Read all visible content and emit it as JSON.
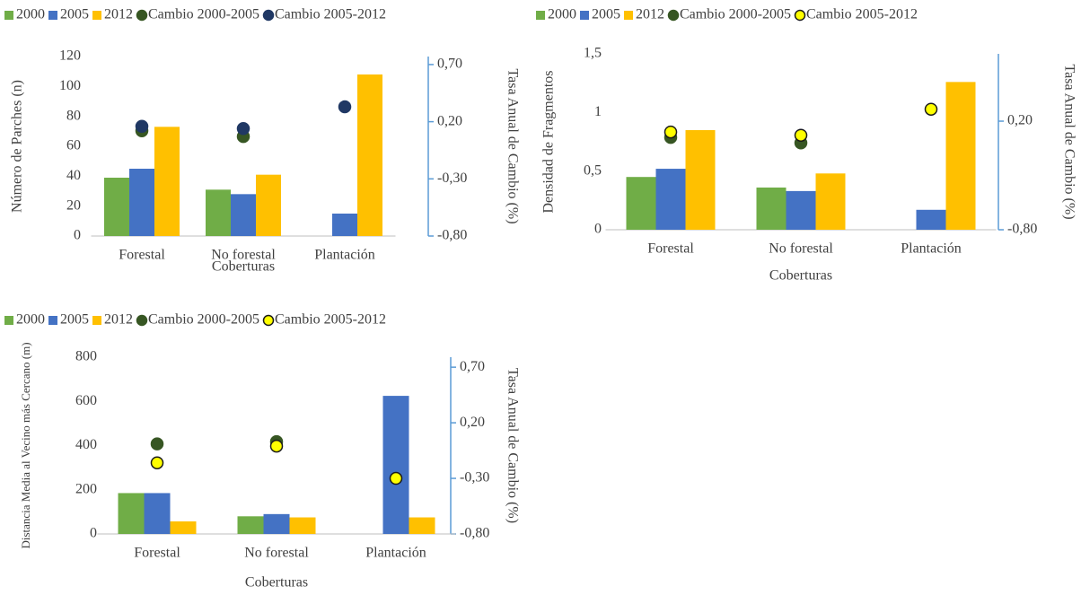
{
  "chart_data": [
    {
      "type": "bar",
      "categories": [
        "Forestal",
        "No forestal",
        "Plantación"
      ],
      "series": [
        {
          "name": "2000",
          "type": "bar",
          "color": "#70ad47",
          "values": [
            39,
            31,
            null
          ]
        },
        {
          "name": "2005",
          "type": "bar",
          "color": "#4472c4",
          "values": [
            45,
            28,
            15
          ]
        },
        {
          "name": "2012",
          "type": "bar",
          "color": "#ffc000",
          "values": [
            73,
            41,
            108
          ]
        },
        {
          "name": "Cambio 2000-2005",
          "type": "scatter",
          "axis": "y2",
          "color": "#375623",
          "values": [
            0.12,
            0.07,
            null
          ]
        },
        {
          "name": "Cambio 2005-2012",
          "type": "scatter",
          "axis": "y2",
          "color": "#203864",
          "values": [
            0.16,
            0.14,
            0.33
          ]
        }
      ],
      "xlabel": "Coberturas",
      "ylabel": "Número de Parches (n)",
      "y2label": "Tasa Anual de Cambio (%)",
      "ylim": [
        0,
        120
      ],
      "yticks": [
        0,
        20,
        40,
        60,
        80,
        100,
        120
      ],
      "y2lim": [
        -0.8,
        0.77
      ],
      "y2ticks": [
        {
          "value": 0.7,
          "label": "0,70"
        },
        {
          "value": 0.2,
          "label": "0,20"
        },
        {
          "value": -0.3,
          "label": "-0,30"
        },
        {
          "value": -0.8,
          "label": "-0,80"
        }
      ],
      "legend": "top"
    },
    {
      "type": "bar",
      "categories": [
        "Forestal",
        "No forestal",
        "Plantación"
      ],
      "series": [
        {
          "name": "2000",
          "type": "bar",
          "color": "#70ad47",
          "values": [
            0.45,
            0.36,
            null
          ]
        },
        {
          "name": "2005",
          "type": "bar",
          "color": "#4472c4",
          "values": [
            0.52,
            0.33,
            0.17
          ]
        },
        {
          "name": "2012",
          "type": "bar",
          "color": "#ffc000",
          "values": [
            0.85,
            0.48,
            1.26
          ]
        },
        {
          "name": "Cambio 2000-2005",
          "type": "scatter",
          "axis": "y2",
          "color": "#375623",
          "values": [
            0.05,
            0.0,
            null
          ]
        },
        {
          "name": "Cambio 2005-2012",
          "type": "scatter",
          "axis": "y2",
          "color": "#ffff00",
          "edge_color": "#1a1a1a",
          "values": [
            0.1,
            0.07,
            0.31
          ]
        }
      ],
      "xlabel": "Coberturas",
      "ylabel": "Densidad de Fragmentos",
      "y2label": "Tasa Anual de Cambio (%)",
      "ylim": [
        0,
        1.5
      ],
      "yticks": [
        0,
        {
          "value": 0.5,
          "label": "0,5"
        },
        1,
        {
          "value": 1.5,
          "label": "1,5"
        }
      ],
      "y2lim": [
        -0.8,
        0.82
      ],
      "y2ticks": [
        {
          "value": 0.2,
          "label": "0,20"
        },
        {
          "value": -0.8,
          "label": "-0,80"
        }
      ],
      "legend": "top"
    },
    {
      "type": "bar",
      "categories": [
        "Forestal",
        "No forestal",
        "Plantación"
      ],
      "series": [
        {
          "name": "2000",
          "type": "bar",
          "color": "#70ad47",
          "values": [
            185,
            80,
            null
          ]
        },
        {
          "name": "2005",
          "type": "bar",
          "color": "#4472c4",
          "values": [
            185,
            90,
            625
          ]
        },
        {
          "name": "2012",
          "type": "bar",
          "color": "#ffc000",
          "values": [
            57,
            75,
            75
          ]
        },
        {
          "name": "Cambio 2000-2005",
          "type": "scatter",
          "axis": "y2",
          "color": "#375623",
          "values": [
            0.01,
            0.03,
            null
          ]
        },
        {
          "name": "Cambio 2005-2012",
          "type": "scatter",
          "axis": "y2",
          "color": "#ffff00",
          "edge_color": "#1a1a1a",
          "values": [
            -0.16,
            -0.01,
            -0.3
          ]
        }
      ],
      "xlabel": "Coberturas",
      "ylabel": "Distancia Media al Vecino más Cercano (m)",
      "y2label": "Tasa Anual de Cambio (%)",
      "ylim": [
        0,
        800
      ],
      "yticks": [
        0,
        200,
        400,
        600,
        800
      ],
      "y2lim": [
        -0.8,
        0.79
      ],
      "y2ticks": [
        {
          "value": 0.7,
          "label": "0,70"
        },
        {
          "value": 0.2,
          "label": "0,20"
        },
        {
          "value": -0.3,
          "label": "-0,30"
        },
        {
          "value": -0.8,
          "label": "-0,80"
        }
      ],
      "legend": "top"
    }
  ]
}
